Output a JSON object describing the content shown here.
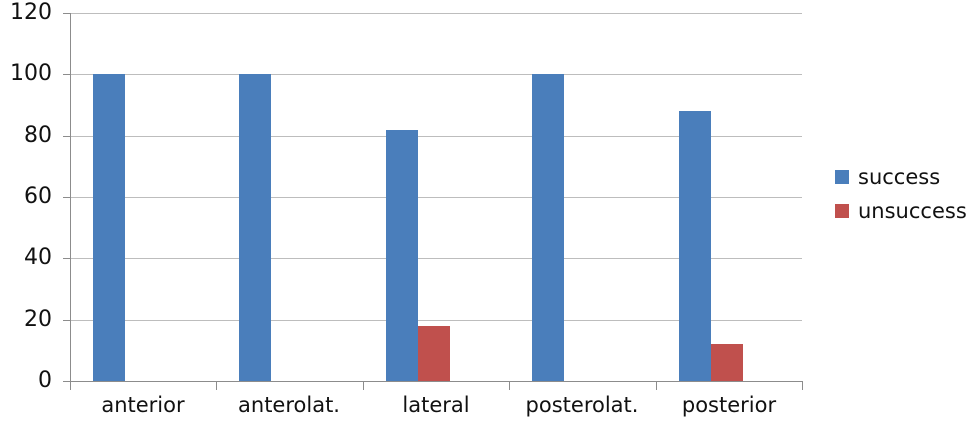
{
  "chart_data": {
    "type": "bar",
    "title": "",
    "xlabel": "",
    "ylabel": "",
    "categories": [
      "anterior",
      "anterolat.",
      "lateral",
      "posterolat.",
      "posterior"
    ],
    "series": [
      {
        "name": "success",
        "color": "#4A7EBB",
        "values": [
          100,
          100,
          82,
          100,
          88
        ]
      },
      {
        "name": "unsuccess",
        "color": "#C0504D",
        "values": [
          0,
          0,
          18,
          0,
          12
        ]
      }
    ],
    "ylim": [
      0,
      120
    ],
    "yticks": [
      0,
      20,
      40,
      60,
      80,
      100,
      120
    ],
    "grid": true,
    "legend_position": "right"
  },
  "style": {
    "background_color": "#FFFFFF",
    "gridline_color": "#BDBDBD",
    "axis_color": "#8C8C8C",
    "text_color": "#111111"
  }
}
